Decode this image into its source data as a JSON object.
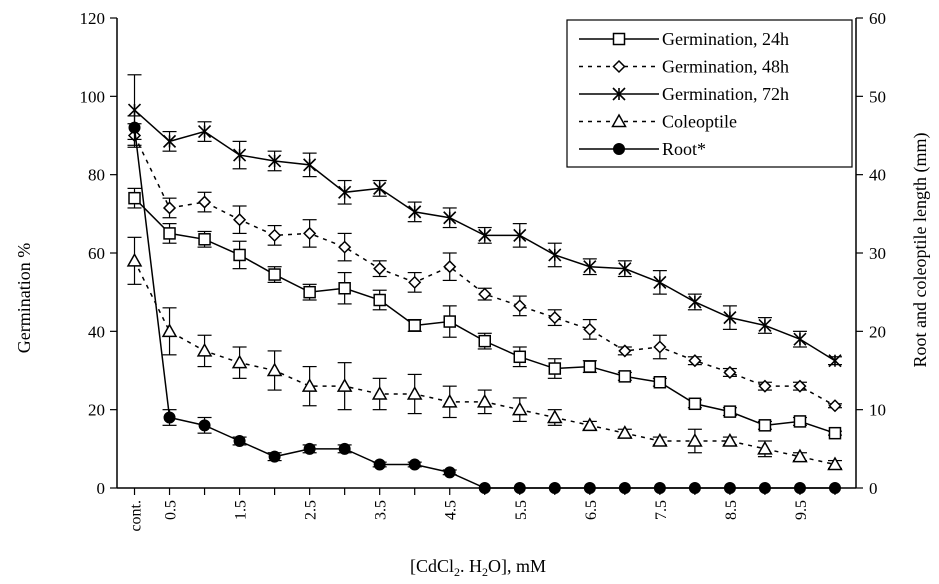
{
  "chart_data": {
    "type": "line",
    "xlabel": "[CdCl2. H2O], mM",
    "ylabel_left": "Germination %",
    "ylabel_right": "Root and coleoptile length (mm)",
    "ylim_left": [
      0,
      120
    ],
    "ylim_right": [
      0,
      60
    ],
    "yticks_left": [
      "0",
      "20",
      "40",
      "60",
      "80",
      "100",
      "120"
    ],
    "yticks_right": [
      "0",
      "10",
      "20",
      "30",
      "40",
      "50",
      "60"
    ],
    "grid": false,
    "legend_position": "top-right",
    "x": [
      0,
      0.5,
      1,
      1.5,
      2,
      2.5,
      3,
      3.5,
      4,
      4.5,
      5,
      5.5,
      6,
      6.5,
      7,
      7.5,
      8,
      8.5,
      9,
      9.5,
      10
    ],
    "x_tick_labels": [
      "cont.",
      "0.5",
      "",
      "1.5",
      "",
      "2.5",
      "",
      "3.5",
      "",
      "4.5",
      "",
      "5.5",
      "",
      "6.5",
      "",
      "7.5",
      "",
      "8.5",
      "",
      "9.5",
      ""
    ],
    "series": [
      {
        "name": "Germination, 24h",
        "axis": "left",
        "marker": "square",
        "line": "solid",
        "values": [
          74,
          65,
          63.5,
          59.5,
          54.5,
          50,
          51,
          48,
          41.5,
          42.5,
          37.5,
          33.5,
          30.5,
          31,
          28.5,
          27,
          21.5,
          19.5,
          16,
          17,
          14
        ],
        "errors": [
          2.5,
          2.5,
          2,
          3.5,
          2,
          2,
          4,
          2.5,
          1.5,
          4,
          2,
          2.5,
          2.5,
          1.5,
          1,
          1,
          1,
          1,
          1,
          1,
          0.5
        ]
      },
      {
        "name": "Germination, 48h",
        "axis": "left",
        "marker": "diamond",
        "line": "dashed",
        "values": [
          90,
          71.5,
          73,
          68.5,
          64.5,
          65,
          61.5,
          56,
          52.5,
          56.5,
          49.5,
          46.5,
          43.5,
          40.5,
          35,
          36,
          32.5,
          29.5,
          26,
          26,
          21
        ],
        "errors": [
          3,
          2.5,
          2.5,
          3.5,
          2.5,
          3.5,
          3.5,
          2,
          2.5,
          3.5,
          1.5,
          2.5,
          2,
          2.5,
          1,
          3,
          1,
          1,
          1,
          1,
          0.5
        ]
      },
      {
        "name": "Germination, 72h",
        "axis": "left",
        "marker": "asterisk",
        "line": "solid",
        "values": [
          96.5,
          88.5,
          91,
          85,
          83.5,
          82.5,
          75.5,
          76.5,
          70.5,
          69,
          64.5,
          64.5,
          59.5,
          56.5,
          56,
          52.5,
          47.5,
          43.5,
          41.5,
          38,
          32.5
        ],
        "errors": [
          9,
          2.5,
          2.5,
          3.5,
          2.5,
          3,
          3,
          2,
          2.5,
          2.5,
          2,
          3,
          3,
          2,
          2,
          3,
          2,
          3,
          2,
          2,
          1
        ]
      },
      {
        "name": "Coleoptile",
        "axis": "right",
        "marker": "triangle",
        "line": "dashed",
        "values": [
          29,
          20,
          17.5,
          16,
          15,
          13,
          13,
          12,
          12,
          11,
          11,
          10,
          9,
          8,
          7,
          6,
          6,
          6,
          5,
          4,
          3
        ],
        "errors": [
          3,
          3,
          2,
          2,
          2.5,
          2.5,
          3,
          2,
          2.5,
          2,
          1.5,
          1.5,
          1,
          0.5,
          0.5,
          0.5,
          1.5,
          0.5,
          1,
          0.5,
          0.5
        ]
      },
      {
        "name": "Root*",
        "axis": "right",
        "marker": "circle",
        "line": "solid",
        "values": [
          46,
          9,
          8,
          6,
          4,
          5,
          5,
          3,
          3,
          2,
          0,
          0,
          0,
          0,
          0,
          0,
          0,
          0,
          0,
          0,
          0
        ],
        "errors": [
          1.5,
          1,
          1,
          0.5,
          0.5,
          0.5,
          0.5,
          0.3,
          0.3,
          0.3,
          0,
          0,
          0,
          0,
          0,
          0,
          0,
          0,
          0,
          0,
          0
        ]
      }
    ]
  }
}
